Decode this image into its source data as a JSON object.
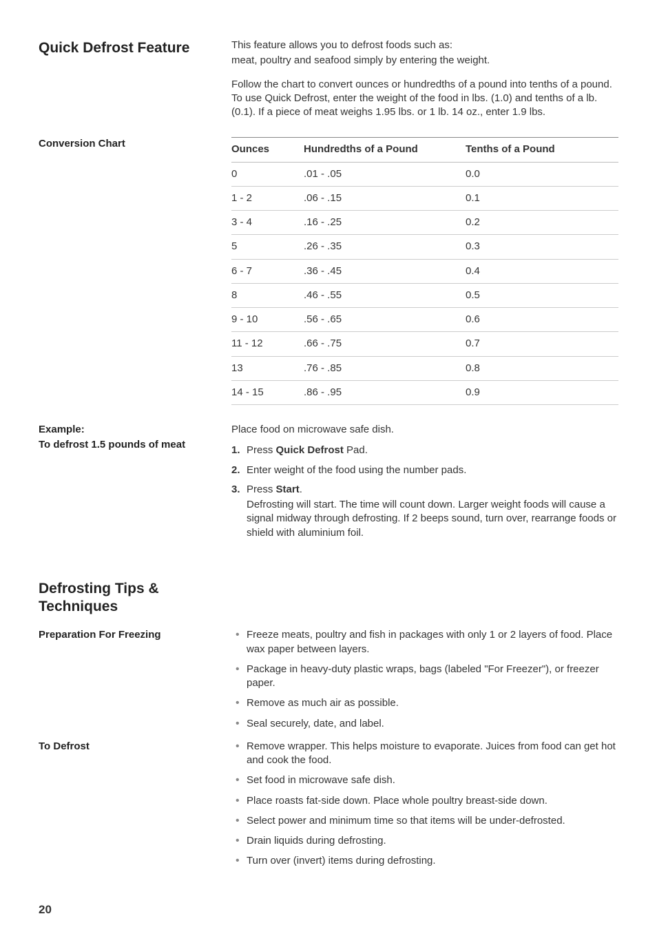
{
  "section1": {
    "title": "Quick Defrost Feature",
    "intro1": "This feature allows you to defrost foods such as:",
    "intro2": "meat, poultry and seafood simply by entering the weight.",
    "para2": "Follow the chart to convert ounces or hundredths of a pound into tenths of a pound. To use Quick Defrost, enter the weight of the food in lbs. (1.0) and tenths of a lb. (0.1). If a piece of meat weighs 1.95 lbs. or 1 lb. 14 oz., enter 1.9 lbs.",
    "chart_label": "Conversion Chart",
    "table": {
      "headers": [
        "Ounces",
        "Hundredths of a Pound",
        "Tenths of a Pound"
      ],
      "rows": [
        [
          "0",
          ".01 - .05",
          "0.0"
        ],
        [
          "1 - 2",
          ".06 - .15",
          "0.1"
        ],
        [
          "3 - 4",
          ".16 - .25",
          "0.2"
        ],
        [
          "5",
          ".26 - .35",
          "0.3"
        ],
        [
          "6 - 7",
          ".36 - .45",
          "0.4"
        ],
        [
          "8",
          ".46 - .55",
          "0.5"
        ],
        [
          "9 - 10",
          ".56 - .65",
          "0.6"
        ],
        [
          "11 - 12",
          ".66 - .75",
          "0.7"
        ],
        [
          "13",
          ".76 - .85",
          "0.8"
        ],
        [
          "14 - 15",
          ".86 - .95",
          "0.9"
        ]
      ]
    },
    "example_label1": "Example:",
    "example_label2": "To defrost 1.5 pounds of meat",
    "example_intro": "Place food on microwave safe dish.",
    "steps": {
      "s1_pre": "Press ",
      "s1_bold": "Quick Defrost",
      "s1_post": " Pad.",
      "s2": "Enter weight of the food using the number pads.",
      "s3_pre": "Press ",
      "s3_bold": "Start",
      "s3_post": ".",
      "s3_body": "Defrosting will start. The time will count down. Larger weight foods will cause a signal midway through defrosting. If 2 beeps sound, turn over, rearrange foods or shield with aluminium foil."
    }
  },
  "section2": {
    "title": "Defrosting Tips & Techniques",
    "prep_label": "Preparation For Freezing",
    "prep_items": [
      "Freeze meats, poultry and fish in packages with only 1 or 2 layers of food. Place wax paper between layers.",
      "Package in heavy-duty plastic wraps, bags (labeled \"For Freezer\"), or freezer paper.",
      "Remove as much air as possible.",
      "Seal securely, date, and label."
    ],
    "defrost_label": "To Defrost",
    "defrost_items": [
      "Remove wrapper. This helps moisture to evaporate. Juices from food can get hot and cook the food.",
      "Set food in microwave safe dish.",
      "Place roasts fat-side down. Place whole poultry breast-side down.",
      "Select power and minimum time so that items will be under-defrosted.",
      "Drain liquids during defrosting.",
      "Turn over (invert) items during defrosting."
    ]
  },
  "page_number": "20"
}
